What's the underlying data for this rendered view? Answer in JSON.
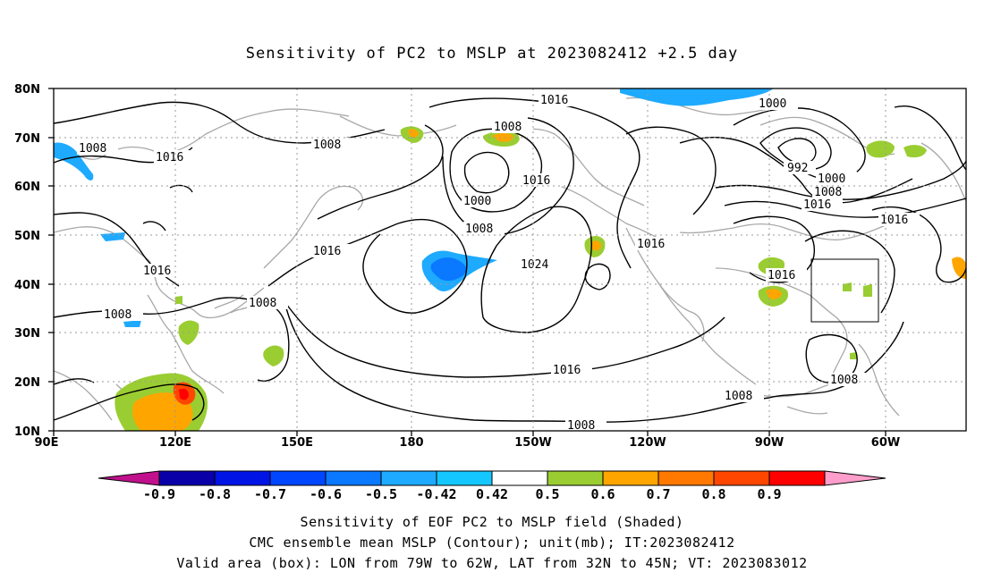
{
  "title": "Sensitivity of PC2 to MSLP at 2023082412 +2.5 day",
  "axes": {
    "lat_ticks": [
      "80N",
      "70N",
      "60N",
      "50N",
      "40N",
      "30N",
      "20N",
      "10N"
    ],
    "lon_ticks": [
      "90E",
      "120E",
      "150E",
      "180",
      "150W",
      "120W",
      "90W",
      "60W"
    ]
  },
  "contour_labels": [
    "1016",
    "1008",
    "1000",
    "992",
    "1024"
  ],
  "colorbar": {
    "ticks": [
      "-0.9",
      "-0.8",
      "-0.7",
      "-0.6",
      "-0.5",
      "-0.42",
      "0.42",
      "0.5",
      "0.6",
      "0.7",
      "0.8",
      "0.9"
    ],
    "colors": [
      "#c0108c",
      "#0a00a8",
      "#0014e6",
      "#0046ff",
      "#0a78ff",
      "#1eaaff",
      "#14c8ff",
      "#ffffff",
      "#9acd32",
      "#ffa500",
      "#ff7800",
      "#ff4600",
      "#ff0000",
      "#ff9ecb"
    ]
  },
  "captions": {
    "line1": "Sensitivity of EOF PC2 to MSLP field (Shaded)",
    "line2": "CMC ensemble mean MSLP (Contour); unit(mb); IT:2023082412",
    "line3": "Valid area (box): LON from 79W to 62W, LAT from 32N to 45N; VT: 2023083012"
  }
}
